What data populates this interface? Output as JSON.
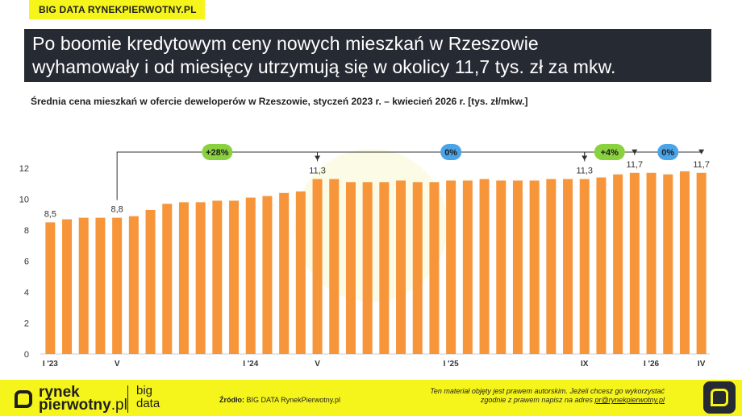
{
  "brand_tag": "BIG DATA RYNEKPIERWOTNY.PL",
  "title_lines": [
    "Po boomie kredytowym ceny nowych mieszkań w Rzeszowie",
    "wyhamowały i od miesięcy utrzymują się w okolicy 11,7 tys. zł za mkw."
  ],
  "subtitle": "Średnia cena mieszkań w ofercie deweloperów w Rzeszowie, styczeń 2023 r. – kwiecień 2026 r. [tys. zł/mkw.]",
  "colors": {
    "bar": "#f7953b",
    "title_bg": "#262a33",
    "accent_yellow": "#f5f51b",
    "badge_green": "#8ad13f",
    "badge_blue": "#4aa4e8",
    "bracket": "#333333"
  },
  "chart_data": {
    "type": "bar",
    "title": "Średnia cena mieszkań w ofercie deweloperów w Rzeszowie, styczeń 2023 r. – kwiecień 2026 r. [tys. zł/mkw.]",
    "ylim": [
      0,
      12
    ],
    "yticks": [
      "0",
      "2",
      "4",
      "6",
      "8",
      "10",
      "12"
    ],
    "values": [
      8.5,
      8.7,
      8.8,
      8.8,
      8.8,
      8.9,
      9.3,
      9.7,
      9.8,
      9.8,
      9.9,
      9.9,
      10.1,
      10.2,
      10.4,
      10.5,
      11.3,
      11.3,
      11.1,
      11.1,
      11.1,
      11.2,
      11.1,
      11.1,
      11.2,
      11.2,
      11.3,
      11.2,
      11.2,
      11.2,
      11.3,
      11.3,
      11.3,
      11.4,
      11.6,
      11.7,
      11.7,
      11.6,
      11.8,
      11.7
    ],
    "x_tick_labels": [
      {
        "index": 0,
        "label": "I '23"
      },
      {
        "index": 4,
        "label": "V"
      },
      {
        "index": 12,
        "label": "I '24"
      },
      {
        "index": 16,
        "label": "V"
      },
      {
        "index": 24,
        "label": "I '25"
      },
      {
        "index": 32,
        "label": "IX"
      },
      {
        "index": 36,
        "label": "I '26"
      },
      {
        "index": 39,
        "label": "IV"
      }
    ],
    "data_labels": [
      {
        "index": 0,
        "label": "8,5"
      },
      {
        "index": 4,
        "label": "8,8"
      },
      {
        "index": 16,
        "label": "11,3"
      },
      {
        "index": 32,
        "label": "11,3"
      },
      {
        "index": 35,
        "label": "11,7"
      },
      {
        "index": 39,
        "label": "11,7"
      }
    ],
    "annotations": [
      {
        "from": 4,
        "to": 16,
        "label": "+28%",
        "color": "green"
      },
      {
        "from": 16,
        "to": 32,
        "label": "0%",
        "color": "blue"
      },
      {
        "from": 32,
        "to": 35,
        "label": "+4%",
        "color": "green"
      },
      {
        "from": 35,
        "to": 39,
        "label": "0%",
        "color": "blue"
      }
    ]
  },
  "footer": {
    "logo_line1": "rynek",
    "logo_line2": "pierwotny",
    "logo_line2_suffix": ".pl",
    "logo_bd1": "big",
    "logo_bd2": "data",
    "source_label": "Źródło:",
    "source_text": " BIG DATA RynekPierwotny.pl",
    "copyright_line1": "Ten materiał objęty jest prawem autorskim. Jeżeli chcesz go wykorzystać",
    "copyright_line2_prefix": "zgodnie z prawem napisz na adres ",
    "copyright_email": "pr@rynekpierwotny.pl"
  }
}
